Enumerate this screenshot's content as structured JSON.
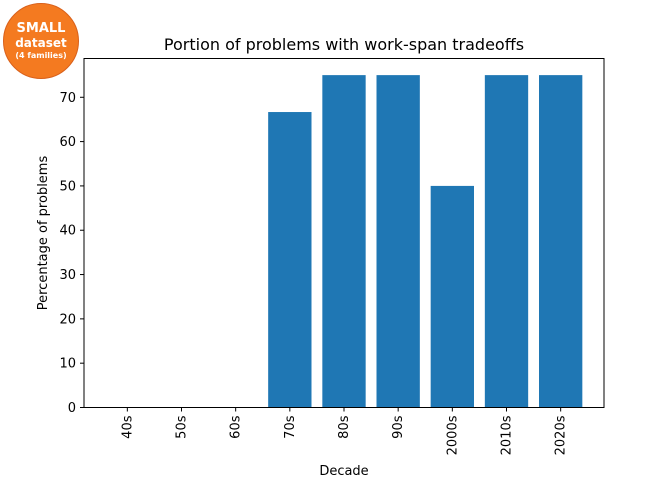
{
  "badge": {
    "line1": "SMALL",
    "line2": "dataset",
    "line3": "(4 families)",
    "color": "#f47a20"
  },
  "chart_data": {
    "type": "bar",
    "title": "Portion of problems with work-span tradeoffs",
    "xlabel": "Decade",
    "ylabel": "Percentage of problems",
    "categories": [
      "40s",
      "50s",
      "60s",
      "70s",
      "80s",
      "90s",
      "2000s",
      "2010s",
      "2020s"
    ],
    "values": [
      0,
      0,
      0,
      66.67,
      75,
      75,
      50,
      75,
      75
    ],
    "ylim": [
      0,
      78.75
    ],
    "yticks": [
      0,
      10,
      20,
      30,
      40,
      50,
      60,
      70
    ],
    "bar_color": "#1f77b4",
    "grid": false,
    "legend": "none"
  }
}
